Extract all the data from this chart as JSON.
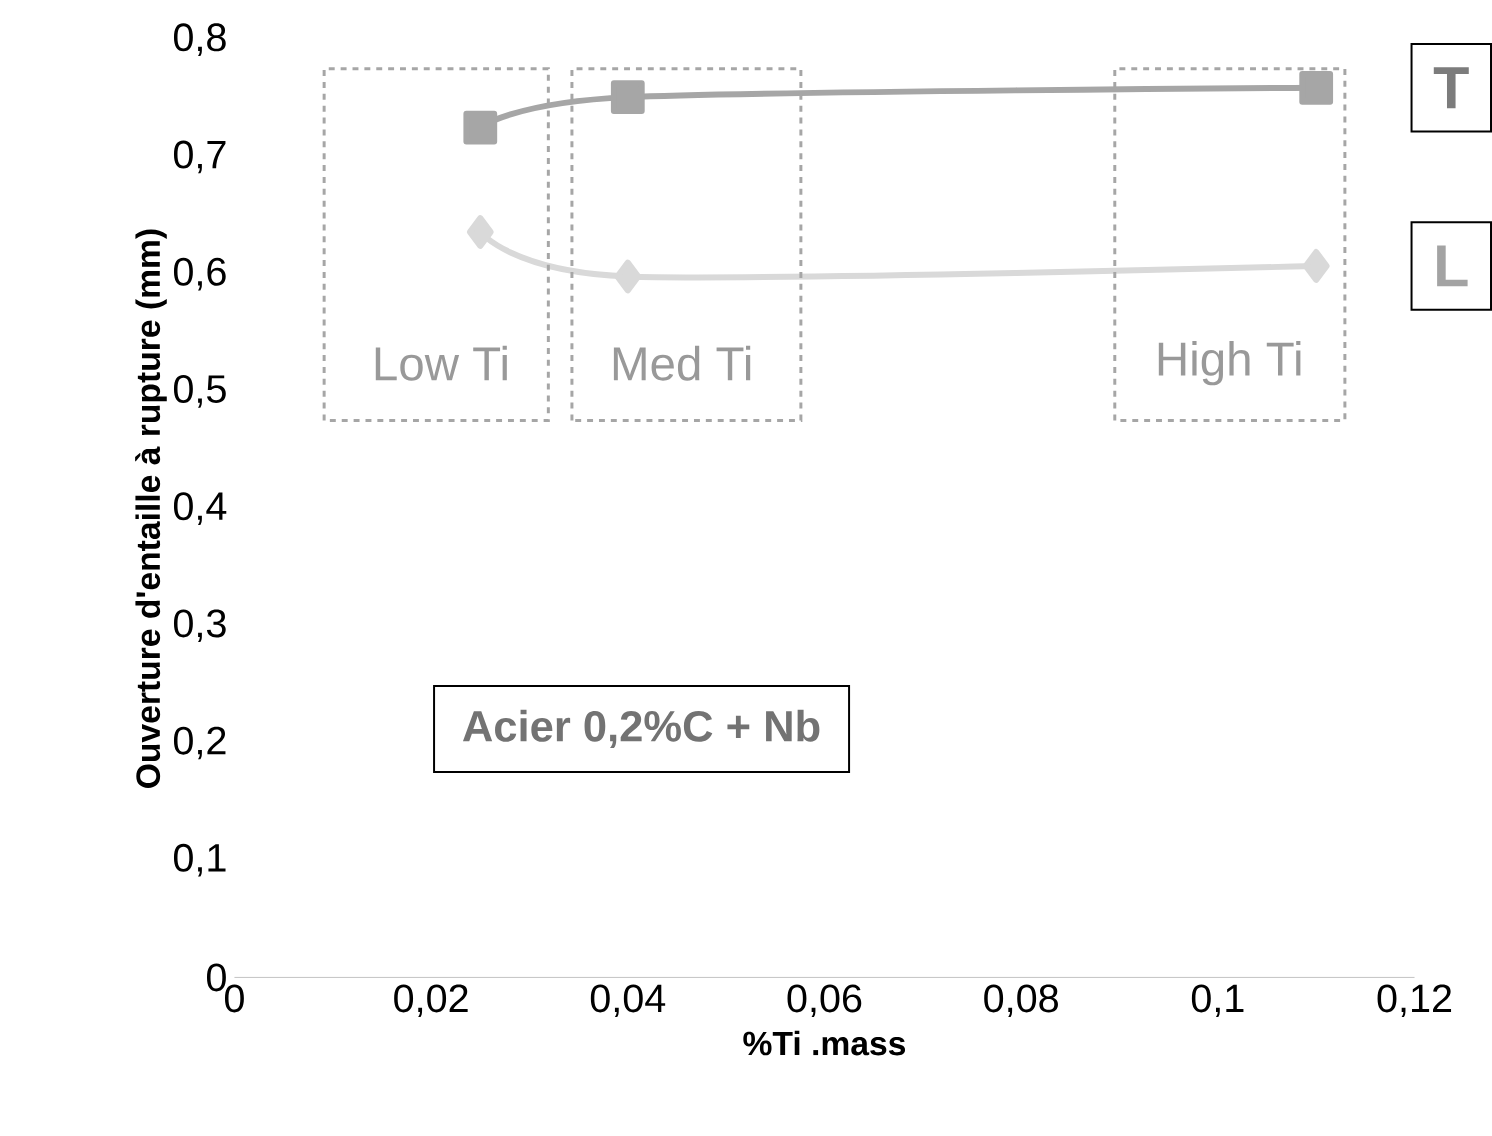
{
  "chart_data": {
    "type": "line",
    "xlabel": "%Ti .mass",
    "ylabel": "Ouverture d'entaille à rupture (mm)",
    "x": [
      0.025,
      0.04,
      0.11
    ],
    "series": [
      {
        "name": "T",
        "color": "#a6a6a6",
        "marker": "square",
        "values": [
          0.725,
          0.751,
          0.759
        ]
      },
      {
        "name": "L",
        "color": "#d9d9d9",
        "marker": "diamond",
        "values": [
          0.636,
          0.598,
          0.607
        ]
      }
    ],
    "xlim": [
      0,
      0.12
    ],
    "ylim": [
      0,
      0.8
    ],
    "xticks": [
      0,
      {
        "value": 0.02,
        "label": "0,02"
      },
      {
        "value": 0.04,
        "label": "0,04"
      },
      {
        "value": 0.06,
        "label": "0,06"
      },
      {
        "value": 0.08,
        "label": "0,08"
      },
      {
        "value": 0.1,
        "label": "0,1"
      },
      {
        "value": 0.12,
        "label": "0,12"
      }
    ],
    "yticks": [
      0,
      {
        "value": 0.1,
        "label": "0,1"
      },
      {
        "value": 0.2,
        "label": "0,2"
      },
      {
        "value": 0.3,
        "label": "0,3"
      },
      {
        "value": 0.4,
        "label": "0,4"
      },
      {
        "value": 0.5,
        "label": "0,5"
      },
      {
        "value": 0.6,
        "label": "0,6"
      },
      {
        "value": 0.7,
        "label": "0,7"
      },
      {
        "value": 0.8,
        "label": "0,8"
      }
    ],
    "grid": false,
    "legend": false,
    "annotations": [
      "Low Ti",
      "Med Ti",
      "High Ti",
      "Acier 0,2%C + Nb"
    ]
  }
}
